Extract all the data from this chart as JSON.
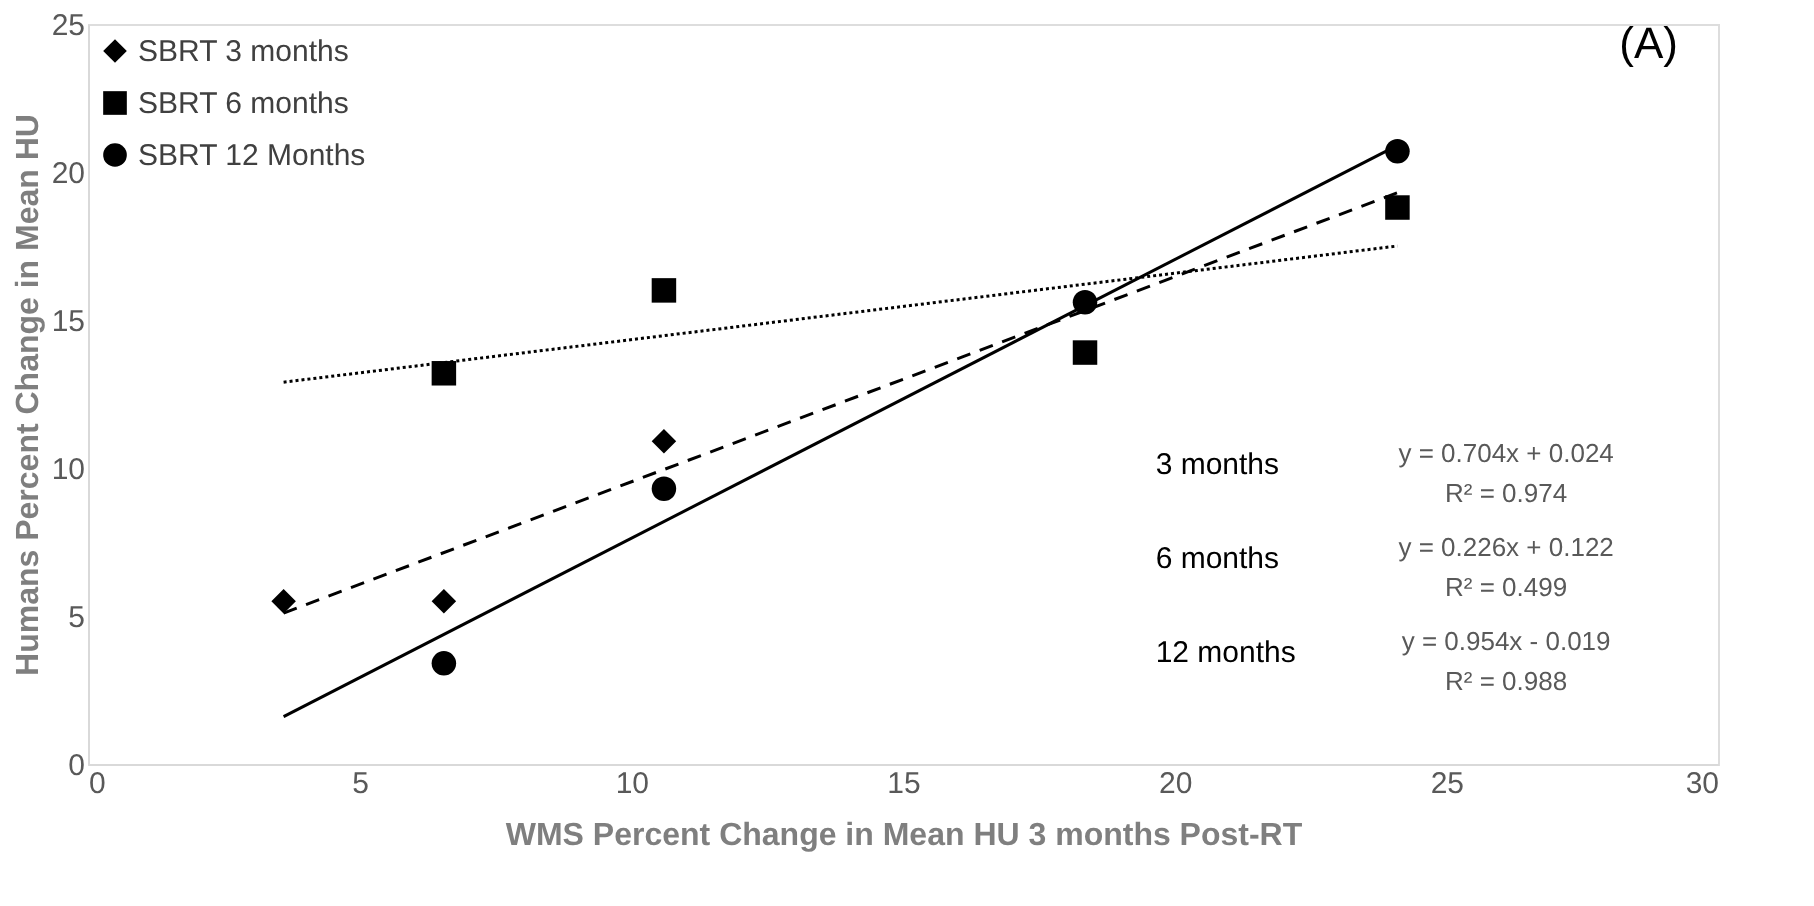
{
  "chart_data": {
    "type": "scatter",
    "xlabel": "WMS  Percent Change  in Mean HU 3 months Post-RT",
    "ylabel": "Humans  Percent Change in Mean HU",
    "xlim": [
      0,
      30
    ],
    "xticks": [
      0,
      5,
      10,
      15,
      20,
      25,
      30
    ],
    "ylim": [
      0,
      25
    ],
    "yticks": [
      0,
      5,
      10,
      15,
      20,
      25
    ],
    "grid": false,
    "legend": "top left",
    "series": [
      {
        "name": "SBRT 3  months",
        "color": "#000000",
        "marker": "diamond",
        "x": [
          3.6,
          6.55,
          10.6
        ],
        "values": [
          5.5,
          5.5,
          10.9
        ]
      },
      {
        "name": "SBRT 6 months",
        "color": "#000000",
        "marker": "square",
        "x": [
          6.55,
          10.6,
          18.35,
          24.1
        ],
        "values": [
          13.2,
          16.0,
          13.9,
          18.8
        ]
      },
      {
        "name": "SBRT 12 Months",
        "color": "#000000",
        "marker": "circle",
        "x": [
          6.55,
          10.6,
          18.35,
          24.1
        ],
        "values": [
          3.4,
          9.3,
          15.6,
          20.7
        ]
      },
      {
        "type": "line",
        "color": "#000000",
        "line_style": "dashed",
        "x": [
          3.6,
          24.1
        ],
        "values": [
          5.1,
          19.3
        ]
      },
      {
        "type": "line",
        "color": "#000000",
        "line_style": "dotted",
        "x": [
          3.6,
          24.1
        ],
        "values": [
          12.9,
          17.5
        ]
      },
      {
        "type": "line",
        "color": "#000000",
        "line_style": "solid",
        "x": [
          3.6,
          24.1
        ],
        "values": [
          1.6,
          20.9
        ]
      }
    ],
    "annotations": [
      "(A)",
      "3 months",
      "6 months",
      "12 months",
      "y = 0.704x + 0.024",
      "R² = 0.974",
      "y = 0.226x + 0.122",
      "R² = 0.499",
      "y = 0.954x - 0.019",
      "R² = 0.988"
    ]
  }
}
